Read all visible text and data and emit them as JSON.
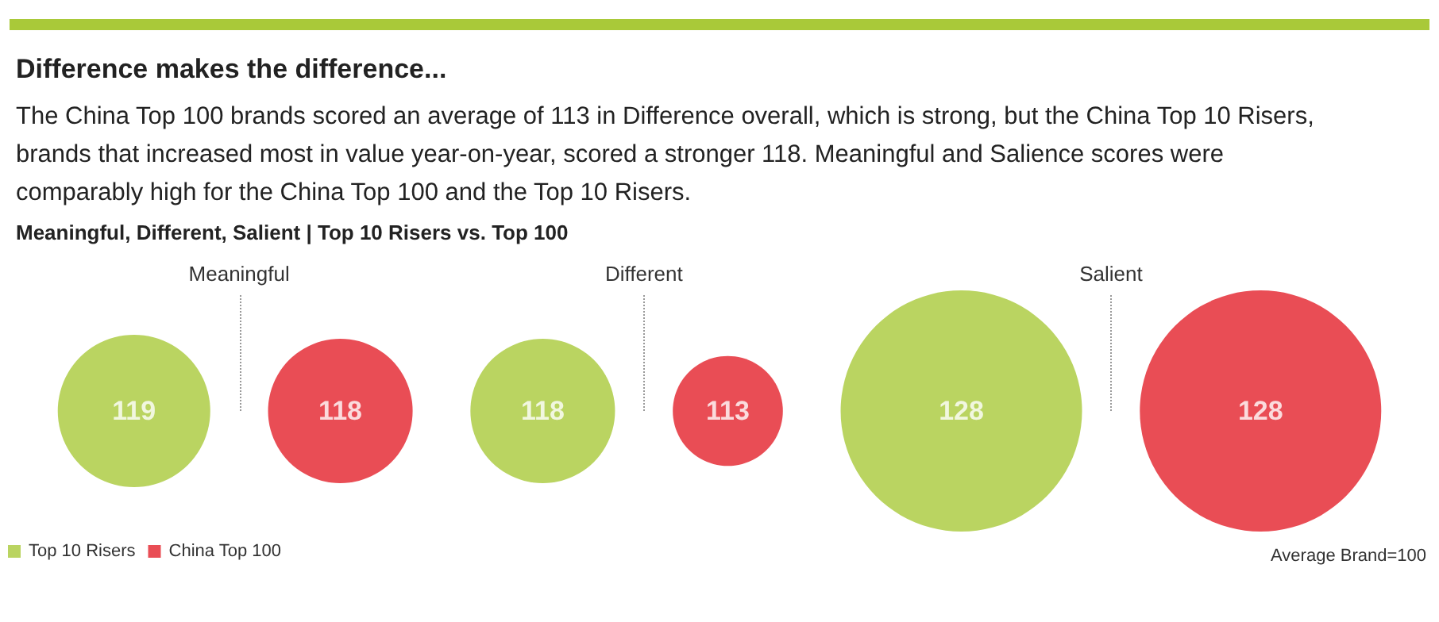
{
  "chart_data": {
    "type": "other",
    "title": "Difference makes the difference...",
    "subtitle": "The China Top 100 brands scored an average of 113 in Difference overall, which is strong, but the China Top 10 Risers, brands that increased most in value year-on-year, scored a stronger 118. Meaningful and Salience scores were comparably high for the China Top 100 and the Top 10 Risers.",
    "annotations": [
      "Meaningful, Different, Salient | Top 10 Risers vs. Top 100",
      "Average Brand=100"
    ],
    "categories": [
      "Meaningful",
      "Different",
      "Salient"
    ],
    "series": [
      {
        "name": "Top 10 Risers",
        "color": "#a9c939",
        "values": [
          119,
          118,
          128
        ]
      },
      {
        "name": "China Top 100",
        "color": "#e3202a",
        "values": [
          118,
          113,
          128
        ]
      }
    ],
    "data_labels": true,
    "legend": "bottom left"
  }
}
